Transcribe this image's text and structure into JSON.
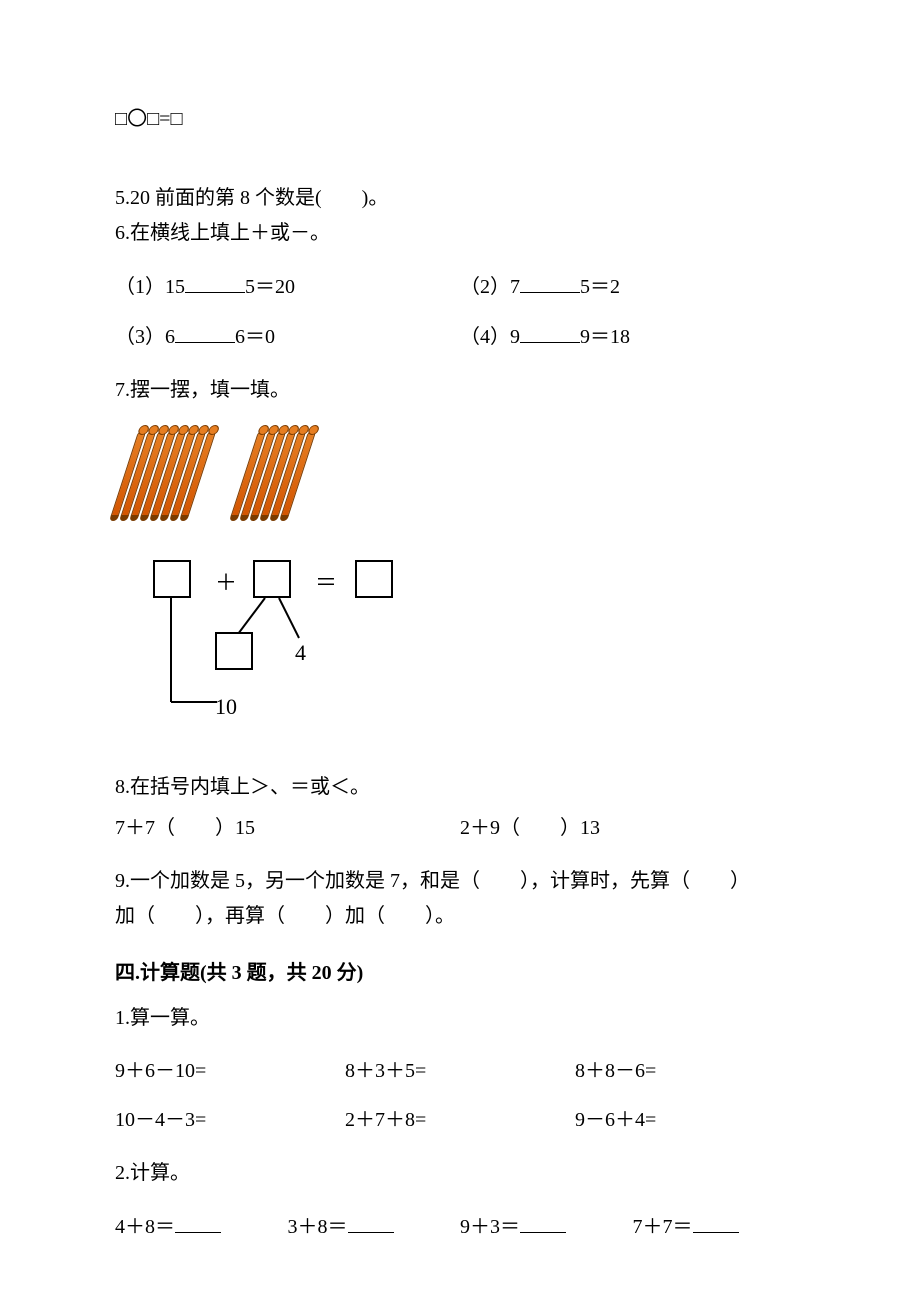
{
  "eq_placeholder": "□〇□=□",
  "q5": "5.20 前面的第 8 个数是(　　)。",
  "q6": {
    "title": "6.在横线上填上＋或－。",
    "items": [
      {
        "pre": "（1）15",
        "post": "5＝20"
      },
      {
        "pre": "（2）7",
        "post": "5＝2"
      },
      {
        "pre": "（3）6",
        "post": "6＝0"
      },
      {
        "pre": "（4）9",
        "post": "9＝18"
      }
    ]
  },
  "q7": {
    "title": "7.摆一摆，填一填。",
    "group_counts": [
      8,
      6
    ],
    "stick_color": "#e67e22",
    "diagram": {
      "plus": "＋",
      "eq": "＝",
      "n4": "4",
      "n10": "10"
    }
  },
  "q8": {
    "title": "8.在括号内填上＞、＝或＜。",
    "left": "7＋7（　　）15",
    "right": "2＋9（　　）13"
  },
  "q9_a": "9.一个加数是 5，另一个加数是 7，和是（　　），计算时，先算（　　）",
  "q9_b": "加（　　），再算（　　）加（　　）。",
  "sec4": "四.计算题(共 3 题，共 20 分)",
  "s4q1": {
    "title": "1.算一算。",
    "rows": [
      [
        "9＋6－10=",
        "8＋3＋5=",
        "8＋8－6="
      ],
      [
        "10－4－3=",
        "2＋7＋8=",
        "9－6＋4="
      ]
    ]
  },
  "s4q2": {
    "title": "2.计算。",
    "items": [
      "4＋8＝",
      "3＋8＝",
      "9＋3＝",
      "7＋7＝"
    ]
  }
}
